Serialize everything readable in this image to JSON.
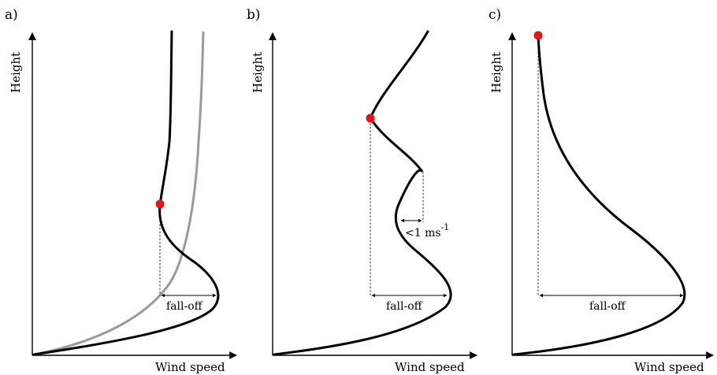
{
  "panels": [
    {
      "id": "a",
      "label": "a)",
      "ylabel": "Height",
      "xlabel": "Wind speed",
      "annotations": {
        "falloff": "fall-off"
      },
      "has_grey_reference": true
    },
    {
      "id": "b",
      "label": "b)",
      "ylabel": "Height",
      "xlabel": "Wind speed",
      "annotations": {
        "falloff": "fall-off",
        "threshold": "<1 ms",
        "threshold_exp": "-1"
      },
      "has_grey_reference": false
    },
    {
      "id": "c",
      "label": "c)",
      "ylabel": "Height",
      "xlabel": "Wind speed",
      "annotations": {
        "falloff": "fall-off"
      },
      "has_grey_reference": false
    }
  ],
  "colors": {
    "profile": "#000000",
    "reference_profile": "#9a9a9a",
    "jet_marker": "#ee1111"
  }
}
